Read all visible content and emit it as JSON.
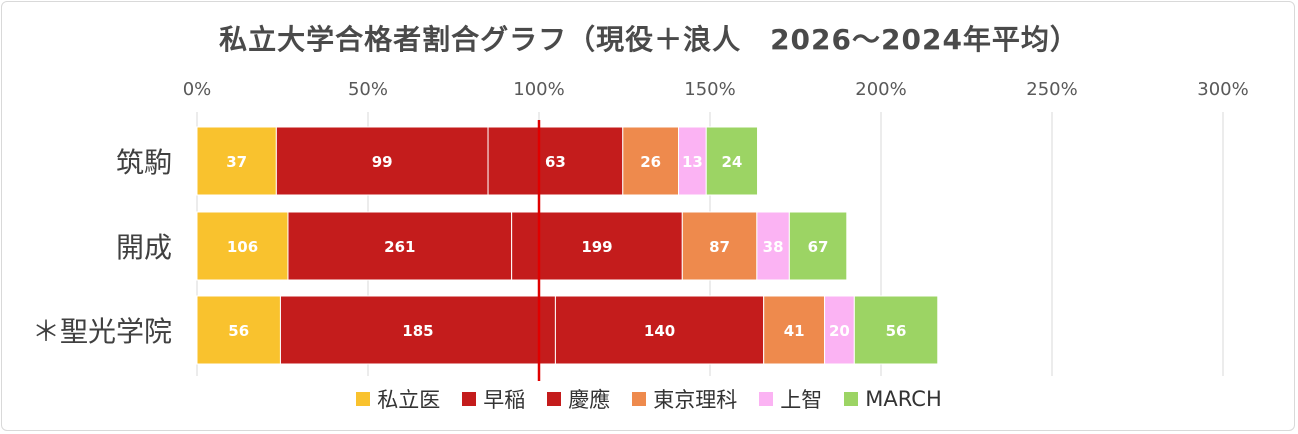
{
  "chart_data": {
    "type": "bar",
    "orientation": "horizontal",
    "stacked": true,
    "title": "私立大学合格者割合グラフ（現役＋浪人　2026〜2024年平均）",
    "x_ticks": [
      "0%",
      "50%",
      "100%",
      "150%",
      "200%",
      "250%",
      "300%"
    ],
    "xlim": [
      0,
      300
    ],
    "categories": [
      "筑駒",
      "開成",
      "＊聖光学院"
    ],
    "reference_line": 100,
    "series": [
      {
        "name": "私立医",
        "color": "#f9c22e",
        "values": [
          23.2,
          26.6,
          24.4
        ],
        "labels": [
          "37",
          "106",
          "56"
        ]
      },
      {
        "name": "早稲",
        "color": "#c41c1c",
        "values": [
          61.9,
          65.4,
          80.4
        ],
        "labels": [
          "99",
          "261",
          "185"
        ]
      },
      {
        "name": "慶應",
        "color": "#c41c1c",
        "values": [
          39.4,
          49.9,
          60.9
        ],
        "labels": [
          "63",
          "199",
          "140"
        ]
      },
      {
        "name": "東京理科",
        "color": "#ee8a4d",
        "values": [
          16.3,
          21.8,
          17.8
        ],
        "labels": [
          "26",
          "87",
          "41"
        ]
      },
      {
        "name": "上智",
        "color": "#fbb3f3",
        "values": [
          8.1,
          9.5,
          8.7
        ],
        "labels": [
          "13",
          "38",
          "20"
        ]
      },
      {
        "name": "MARCH",
        "color": "#9cd464",
        "values": [
          15.0,
          16.8,
          24.4
        ],
        "labels": [
          "24",
          "67",
          "56"
        ]
      }
    ],
    "grid": true,
    "legend": "bottom"
  }
}
